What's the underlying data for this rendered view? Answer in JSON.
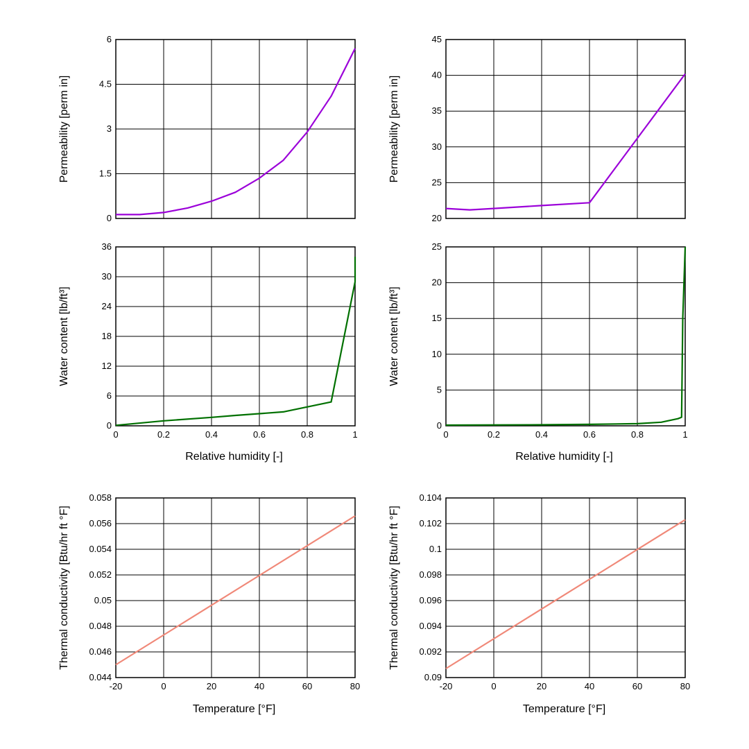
{
  "chart_data": [
    {
      "type": "line",
      "xlabel": "",
      "ylabel": "Permeability [perm in]",
      "xlim": [
        0,
        1
      ],
      "ylim": [
        0,
        6
      ],
      "xticks": [],
      "yticks": [
        "0",
        "1.5",
        "3",
        "4.5",
        "6"
      ],
      "grid": true,
      "color": "#9B00D9",
      "x": [
        0,
        0.1,
        0.2,
        0.3,
        0.4,
        0.5,
        0.6,
        0.7,
        0.8,
        0.9,
        1.0
      ],
      "y": [
        0.13,
        0.13,
        0.2,
        0.35,
        0.58,
        0.88,
        1.35,
        1.95,
        2.9,
        4.1,
        5.7
      ]
    },
    {
      "type": "line",
      "xlabel": "",
      "ylabel": "Permeability [perm in]",
      "xlim": [
        0,
        1
      ],
      "ylim": [
        20,
        45
      ],
      "xticks": [],
      "yticks": [
        "20",
        "25",
        "30",
        "35",
        "40",
        "45"
      ],
      "grid": true,
      "color": "#9B00D9",
      "x": [
        0,
        0.1,
        0.2,
        0.4,
        0.6,
        1.0
      ],
      "y": [
        21.4,
        21.2,
        21.4,
        21.8,
        22.2,
        40.2
      ]
    },
    {
      "type": "line",
      "xlabel": "Relative humidity [-]",
      "ylabel": "Water content [lb/ft³]",
      "xlim": [
        0,
        1
      ],
      "ylim": [
        0,
        36
      ],
      "xticks": [
        "0",
        "0.2",
        "0.4",
        "0.6",
        "0.8",
        "1"
      ],
      "yticks": [
        "0",
        "6",
        "12",
        "18",
        "24",
        "30",
        "36"
      ],
      "grid": true,
      "color": "#007000",
      "x": [
        0,
        0.2,
        0.4,
        0.5,
        0.7,
        0.9,
        1.0,
        1.0
      ],
      "y": [
        0.1,
        1.0,
        1.7,
        2.1,
        2.8,
        4.8,
        29,
        34
      ]
    },
    {
      "type": "line",
      "xlabel": "Relative humidity [-]",
      "ylabel": "Water content [lb/ft³]",
      "xlim": [
        0,
        1
      ],
      "ylim": [
        0,
        25
      ],
      "xticks": [
        "0",
        "0.2",
        "0.4",
        "0.6",
        "0.8",
        "1"
      ],
      "yticks": [
        "0",
        "5",
        "10",
        "15",
        "20",
        "25"
      ],
      "grid": true,
      "color": "#007000",
      "x": [
        0,
        0.4,
        0.6,
        0.8,
        0.9,
        0.97,
        0.985,
        0.99,
        1.0
      ],
      "y": [
        0.1,
        0.15,
        0.2,
        0.3,
        0.5,
        1.0,
        1.2,
        15,
        25
      ]
    },
    {
      "type": "line",
      "xlabel": "Temperature [°F]",
      "ylabel": "Thermal conductivity [Btu/hr ft °F]",
      "xlim": [
        -20,
        80
      ],
      "ylim": [
        0.044,
        0.058
      ],
      "xticks": [
        "-20",
        "0",
        "20",
        "40",
        "60",
        "80"
      ],
      "yticks": [
        "0.044",
        "0.046",
        "0.048",
        "0.05",
        "0.052",
        "0.054",
        "0.056",
        "0.058"
      ],
      "grid": true,
      "color": "#F08878",
      "x": [
        -20,
        80
      ],
      "y": [
        0.045,
        0.0566
      ]
    },
    {
      "type": "line",
      "xlabel": "Temperature [°F]",
      "ylabel": "Thermal conductivity [Btu/hr ft °F]",
      "xlim": [
        -20,
        80
      ],
      "ylim": [
        0.09,
        0.104
      ],
      "xticks": [
        "-20",
        "0",
        "20",
        "40",
        "60",
        "80"
      ],
      "yticks": [
        "0.09",
        "0.092",
        "0.094",
        "0.096",
        "0.098",
        "0.1",
        "0.102",
        "0.104"
      ],
      "grid": true,
      "color": "#F08878",
      "x": [
        -20,
        80
      ],
      "y": [
        0.0907,
        0.1023
      ]
    }
  ]
}
